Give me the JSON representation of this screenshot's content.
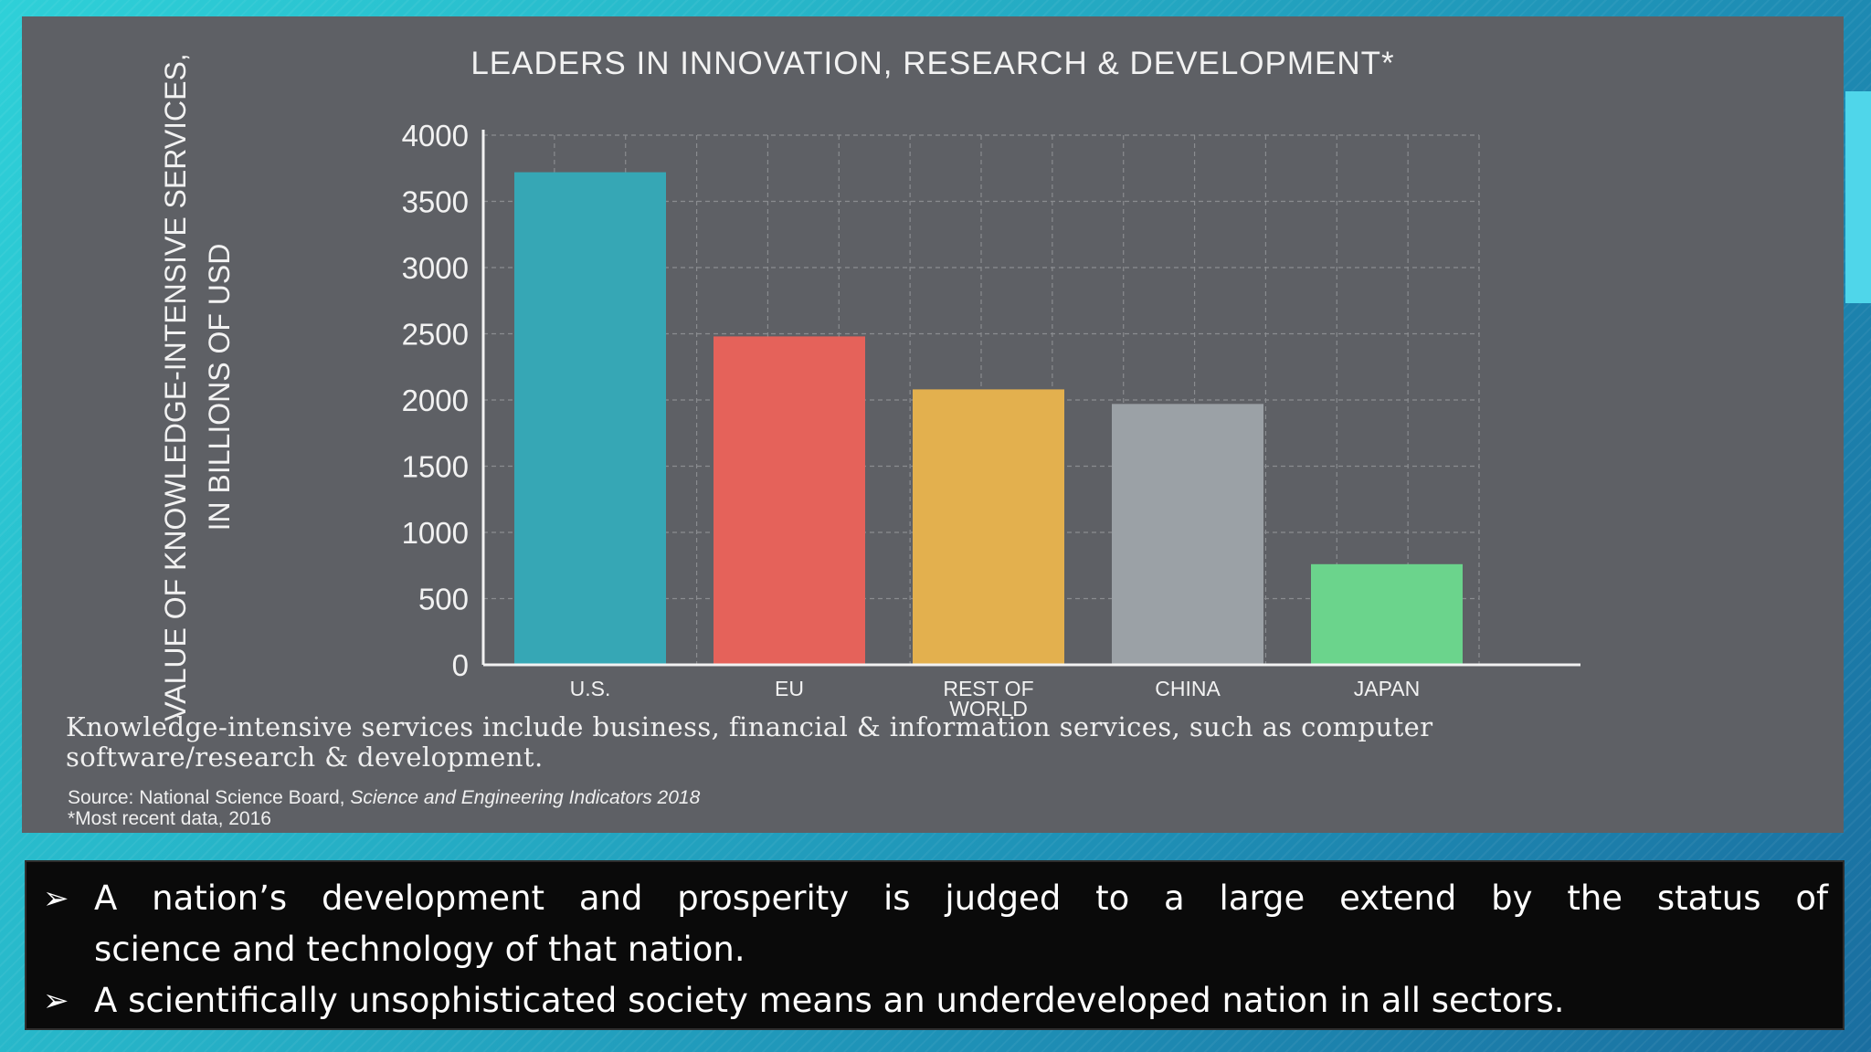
{
  "chart_data": {
    "type": "bar",
    "title": "LEADERS IN INNOVATION, RESEARCH & DEVELOPMENT*",
    "ylabel": [
      "VALUE OF KNOWLEDGE-INTENSIVE SERVICES,",
      "IN BILLIONS OF USD"
    ],
    "xlabel": "",
    "categories": [
      [
        "U.S."
      ],
      [
        "EU"
      ],
      [
        "REST OF",
        "WORLD"
      ],
      [
        "CHINA"
      ],
      [
        "JAPAN"
      ]
    ],
    "values": [
      3720,
      2480,
      2080,
      1970,
      760
    ],
    "colors": [
      "#36a7b5",
      "#e5625a",
      "#e3b04e",
      "#9ba1a6",
      "#6bd48c"
    ],
    "ylim": [
      0,
      4000
    ],
    "yticks": [
      0,
      500,
      1000,
      1500,
      2000,
      2500,
      3000,
      3500,
      4000
    ],
    "grid": true,
    "note": "Knowledge-intensive services include business, financial & information services, such as computer software/research & development.",
    "source_prefix": "Source: National Science Board, ",
    "source_title": "Science and Engineering Indicators 2018",
    "footnote": "*Most recent data, 2016"
  },
  "bullets": {
    "marker": "➢",
    "items": [
      {
        "line1": "A nation’s development and prosperity is judged to a large extend by the status of",
        "line2": "science and technology of that nation."
      },
      {
        "text": "A scientifically unsophisticated society means an underdeveloped nation in all sectors."
      }
    ]
  }
}
